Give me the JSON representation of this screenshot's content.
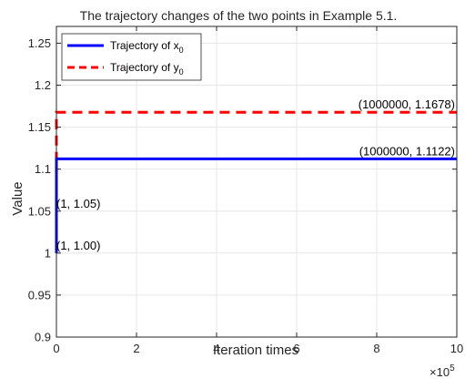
{
  "chart_data": {
    "type": "line",
    "title": "The trajectory changes of the two points in Example 5.1.",
    "xlabel": "Iteration times",
    "ylabel": "Value",
    "x_exponent_label": "×10",
    "x_exponent_power": "5",
    "xlim": [
      0,
      1000000
    ],
    "ylim": [
      0.9,
      1.27
    ],
    "x_ticks": [
      0,
      200000,
      400000,
      600000,
      800000,
      1000000
    ],
    "x_tick_labels": [
      "0",
      "2",
      "4",
      "6",
      "8",
      "10"
    ],
    "y_ticks": [
      0.9,
      0.95,
      1.0,
      1.05,
      1.1,
      1.15,
      1.2,
      1.25
    ],
    "y_tick_labels": [
      "0.9",
      "0.95",
      "1",
      "1.05",
      "1.1",
      "1.15",
      "1.2",
      "1.25"
    ],
    "grid": true,
    "legend_position": "top-left",
    "series": [
      {
        "name": "Trajectory of x",
        "name_subscript": "0",
        "color": "#0000ff",
        "style": "solid",
        "points": [
          [
            1,
            1.0
          ],
          [
            10,
            1.1122
          ],
          [
            1000000,
            1.1122
          ]
        ]
      },
      {
        "name": "Trajectory of y",
        "name_subscript": "0",
        "color": "#ff0000",
        "style": "dashed",
        "points": [
          [
            1,
            1.05
          ],
          [
            10,
            1.1678
          ],
          [
            1000000,
            1.1678
          ]
        ]
      }
    ],
    "annotations": [
      {
        "text": "(1, 1.00)",
        "x": 1,
        "y": 1.0,
        "anchor": "start"
      },
      {
        "text": "(1, 1.05)",
        "x": 1,
        "y": 1.05,
        "anchor": "start"
      },
      {
        "text": "(1000000, 1.1122)",
        "x": 1000000,
        "y": 1.1122,
        "anchor": "end"
      },
      {
        "text": "(1000000, 1.1678)",
        "x": 1000000,
        "y": 1.1678,
        "anchor": "end"
      }
    ]
  }
}
